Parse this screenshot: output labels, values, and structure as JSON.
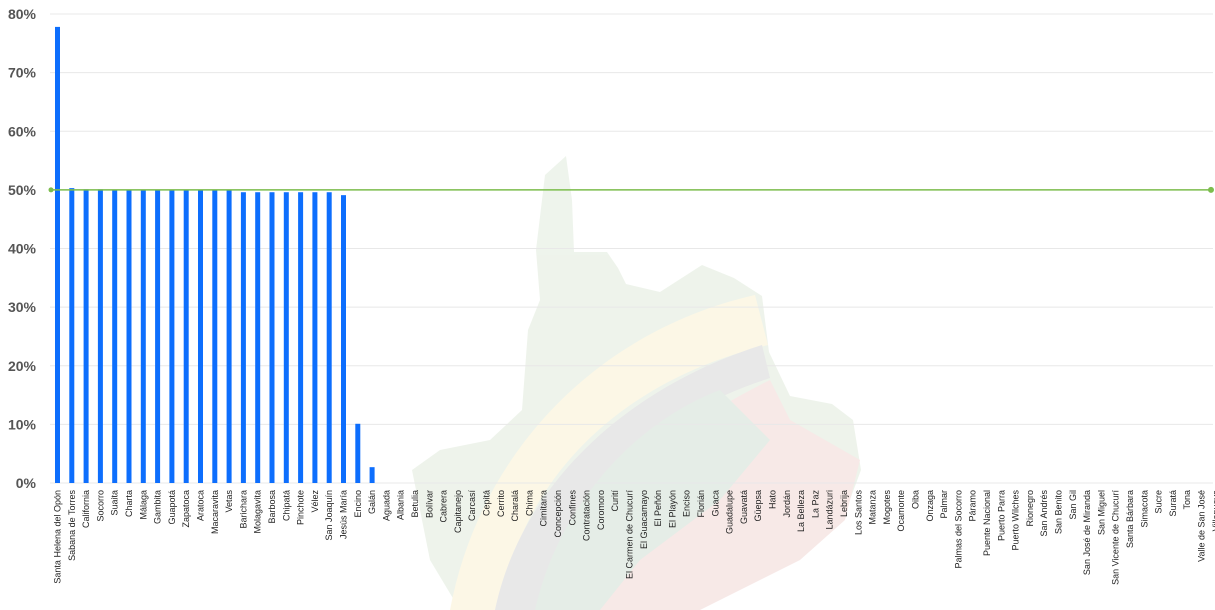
{
  "chart_data": {
    "type": "bar",
    "title": "",
    "xlabel": "",
    "ylabel": "",
    "ylim": [
      0,
      80
    ],
    "y_ticks": [
      "0%",
      "10%",
      "20%",
      "30%",
      "40%",
      "50%",
      "60%",
      "70%",
      "80%"
    ],
    "y_tick_values": [
      0,
      10,
      20,
      30,
      40,
      50,
      60,
      70,
      80
    ],
    "grid": true,
    "reference_line": {
      "value": 50
    },
    "colors": {
      "bars": "#0d6efd",
      "reference_line": "#7cbd4d",
      "grid": "#e8e8e8"
    },
    "categories": [
      "Santa Helena del Opón",
      "Sabana de Torres",
      "California",
      "Socorro",
      "Suaita",
      "Charta",
      "Málaga",
      "Gambita",
      "Guapotá",
      "Zapatoca",
      "Aratoca",
      "Macaravita",
      "Vetas",
      "Barichara",
      "Molagavita",
      "Barbosa",
      "Chipatá",
      "Pinchote",
      "Vélez",
      "San Joaquín",
      "Jesús María",
      "Encino",
      "Galán",
      "Aguada",
      "Albania",
      "Betulia",
      "Bolívar",
      "Cabrera",
      "Capitanejo",
      "Carcasí",
      "Cepitá",
      "Cerrito",
      "Charalá",
      "Chima",
      "Cimitarra",
      "Concepción",
      "Confines",
      "Contratación",
      "Coromoro",
      "Curití",
      "El Carmen de Chucurí",
      "El Guacamayo",
      "El Peñón",
      "El Playón",
      "Enciso",
      "Florián",
      "Guaca",
      "Guadalupe",
      "Guavatá",
      "Güepsa",
      "Hato",
      "Jordán",
      "La Belleza",
      "La Paz",
      "Landázuri",
      "Lebrija",
      "Los Santos",
      "Matanza",
      "Mogotes",
      "Ocamonte",
      "Oiba",
      "Onzaga",
      "Palmar",
      "Palmas del Socorro",
      "Páramo",
      "Puente Nacional",
      "Puerto Parra",
      "Puerto Wilches",
      "Rionegro",
      "San Andrés",
      "San Benito",
      "San Gil",
      "San José de Miranda",
      "San Miguel",
      "San Vicente de Chucurí",
      "Santa Bárbara",
      "Simacota",
      "Sucre",
      "Suratá",
      "Tona",
      "Valle de San José",
      "Villanueva"
    ],
    "values": [
      77.8,
      50.3,
      50.1,
      50.1,
      50.0,
      50.0,
      50.0,
      50.0,
      50.0,
      50.0,
      50.0,
      50.0,
      50.0,
      49.6,
      49.6,
      49.6,
      49.6,
      49.6,
      49.6,
      49.6,
      49.1,
      10.1,
      2.7,
      0,
      0,
      0,
      0,
      0,
      0,
      0,
      0,
      0,
      0,
      0,
      0,
      0,
      0,
      0,
      0,
      0,
      0,
      0,
      0,
      0,
      0,
      0,
      0,
      0,
      0,
      0,
      0,
      0,
      0,
      0,
      0,
      0,
      0,
      0,
      0,
      0,
      0,
      0,
      0,
      0,
      0,
      0,
      0,
      0,
      0,
      0,
      0,
      0,
      0,
      0,
      0,
      0,
      0,
      0,
      0,
      0,
      0,
      0
    ]
  }
}
